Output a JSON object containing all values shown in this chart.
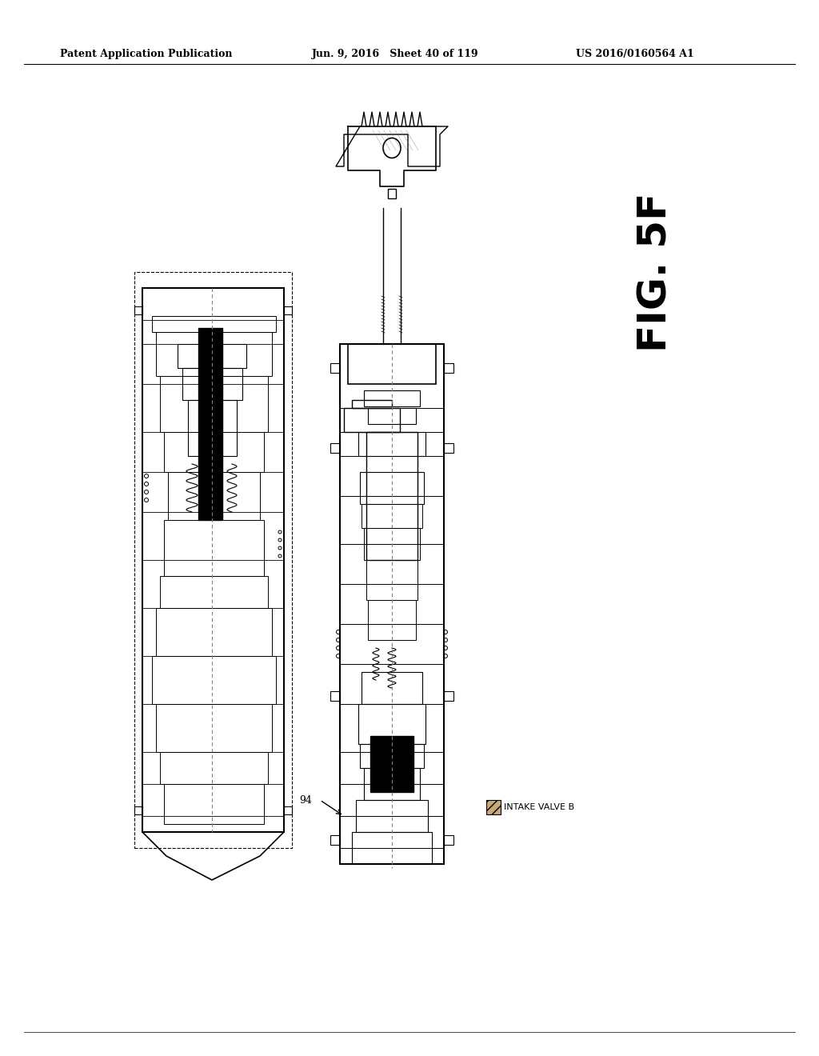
{
  "bg_color": "#ffffff",
  "header_left": "Patent Application Publication",
  "header_mid": "Jun. 9, 2016   Sheet 40 of 119",
  "header_right": "US 2016/0160564 A1",
  "fig_label": "FIG. 5F",
  "label_94": "94",
  "intake_valve_label": "INTAKE VALVE B",
  "header_font_size": 9,
  "fig_font_size": 36
}
